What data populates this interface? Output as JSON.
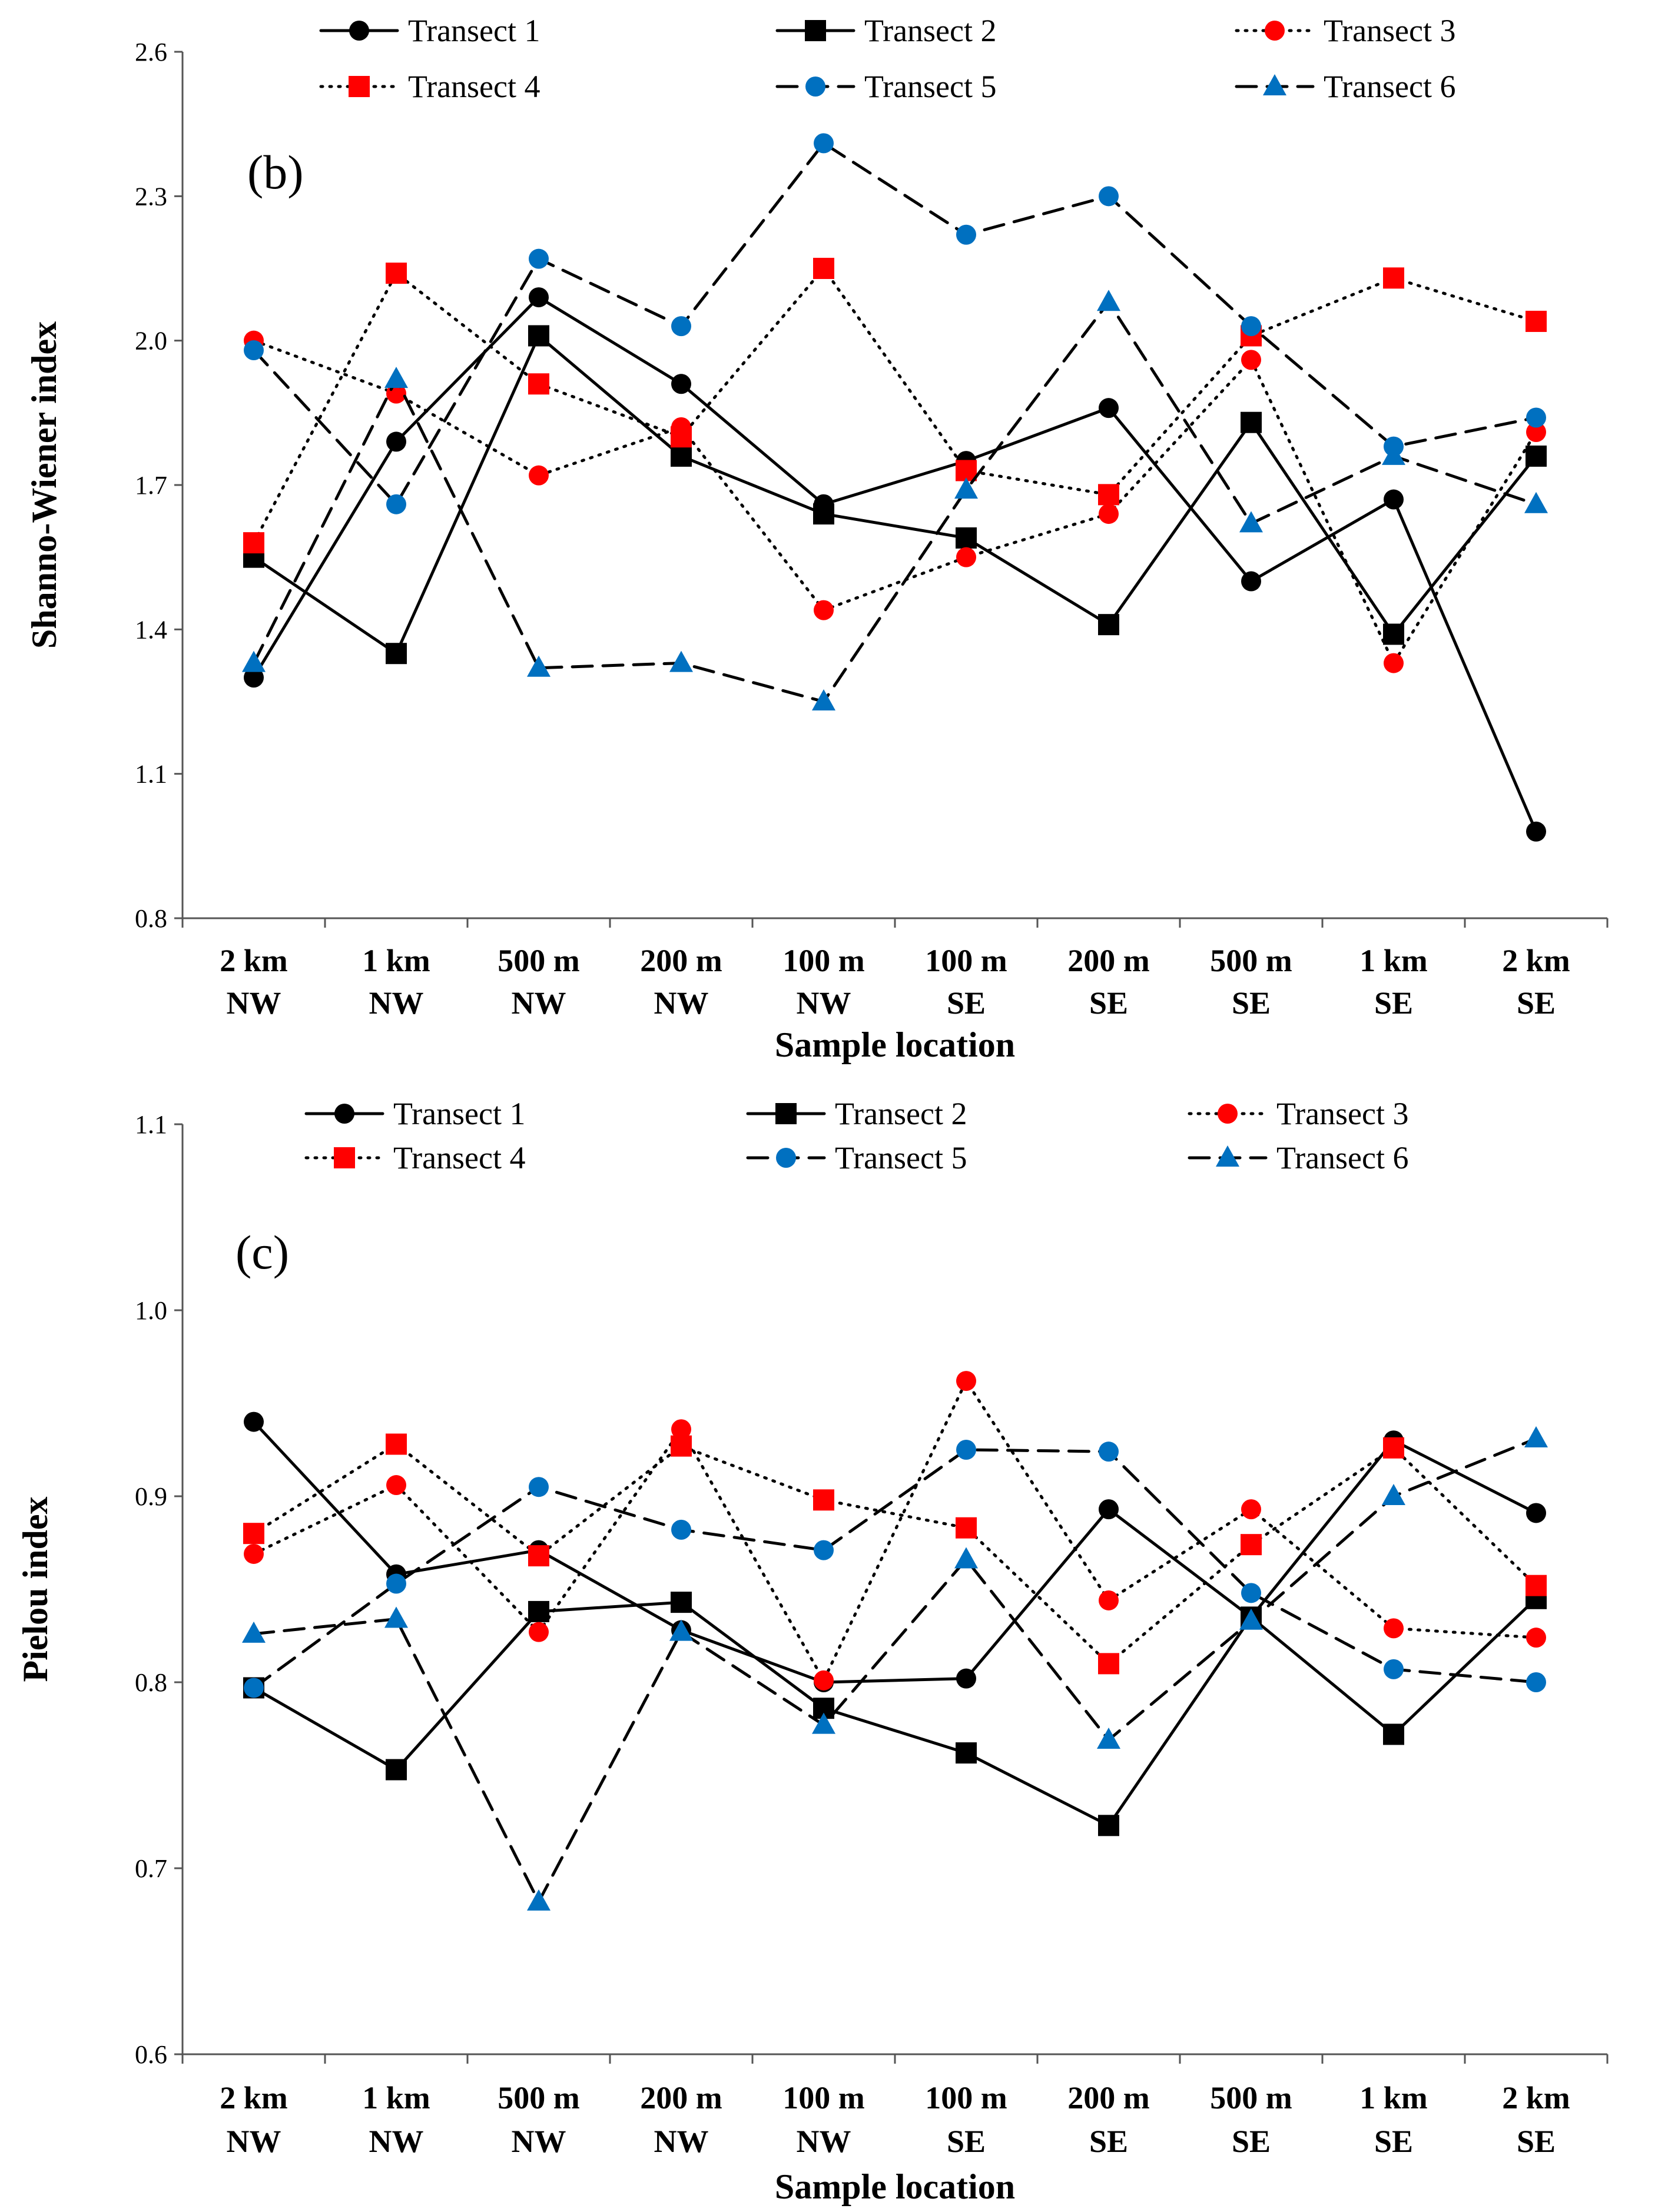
{
  "style": {
    "colors": {
      "black": "#000000",
      "red": "#ff0000",
      "blue": "#0070c0",
      "axis": "#555555"
    }
  },
  "chart_data": [
    {
      "type": "line",
      "panel_label": "(b)",
      "ylabel": "Shanno-Wiener index",
      "xlabel": "Sample location",
      "ylim": [
        0.8,
        2.6
      ],
      "yticks": [
        "0.8",
        "1.1",
        "1.4",
        "1.7",
        "2.0",
        "2.3",
        "2.6"
      ],
      "categories": [
        {
          "line1": "2 km",
          "line2": "NW"
        },
        {
          "line1": "1 km",
          "line2": "NW"
        },
        {
          "line1": "500 m",
          "line2": "NW"
        },
        {
          "line1": "200 m",
          "line2": "NW"
        },
        {
          "line1": "100 m",
          "line2": "NW"
        },
        {
          "line1": "100 m",
          "line2": "SE"
        },
        {
          "line1": "200 m",
          "line2": "SE"
        },
        {
          "line1": "500 m",
          "line2": "SE"
        },
        {
          "line1": "1 km",
          "line2": "SE"
        },
        {
          "line1": "2 km",
          "line2": "SE"
        }
      ],
      "legend": "top",
      "series": [
        {
          "name": "Transect 1",
          "color": "#000000",
          "marker": "circle",
          "dash": "solid",
          "values": [
            1.3,
            1.79,
            2.09,
            1.91,
            1.66,
            1.75,
            1.86,
            1.5,
            1.67,
            0.98
          ]
        },
        {
          "name": "Transect 2",
          "color": "#000000",
          "marker": "square",
          "dash": "solid",
          "values": [
            1.55,
            1.35,
            2.01,
            1.76,
            1.64,
            1.59,
            1.41,
            1.83,
            1.39,
            1.76
          ]
        },
        {
          "name": "Transect 3",
          "color": "#ff0000",
          "marker": "circle",
          "dash": "dotted",
          "values": [
            2.0,
            1.89,
            1.72,
            1.82,
            1.44,
            1.55,
            1.64,
            1.96,
            1.33,
            1.81
          ]
        },
        {
          "name": "Transect 4",
          "color": "#ff0000",
          "marker": "square",
          "dash": "dotted",
          "values": [
            1.58,
            2.14,
            1.91,
            1.8,
            2.15,
            1.73,
            1.68,
            2.01,
            2.13,
            2.04
          ]
        },
        {
          "name": "Transect 5",
          "color": "#0070c0",
          "marker": "circle",
          "dash": "dashed",
          "values": [
            1.98,
            1.66,
            2.17,
            2.03,
            2.41,
            2.22,
            2.3,
            2.03,
            1.78,
            1.84
          ]
        },
        {
          "name": "Transect 6",
          "color": "#0070c0",
          "marker": "triangle",
          "dash": "dashed",
          "values": [
            1.33,
            1.92,
            1.32,
            1.33,
            1.25,
            1.69,
            2.08,
            1.62,
            1.76,
            1.66
          ]
        }
      ]
    },
    {
      "type": "line",
      "panel_label": "(c)",
      "ylabel": "Pielou index",
      "xlabel": "Sample location",
      "ylim": [
        0.6,
        1.1
      ],
      "yticks": [
        "0.6",
        "0.7",
        "0.8",
        "0.9",
        "1.0",
        "1.1"
      ],
      "categories": [
        {
          "line1": "2 km",
          "line2": "NW"
        },
        {
          "line1": "1 km",
          "line2": "NW"
        },
        {
          "line1": "500 m",
          "line2": "NW"
        },
        {
          "line1": "200 m",
          "line2": "NW"
        },
        {
          "line1": "100 m",
          "line2": "NW"
        },
        {
          "line1": "100 m",
          "line2": "SE"
        },
        {
          "line1": "200 m",
          "line2": "SE"
        },
        {
          "line1": "500 m",
          "line2": "SE"
        },
        {
          "line1": "1 km",
          "line2": "SE"
        },
        {
          "line1": "2 km",
          "line2": "SE"
        }
      ],
      "legend": "top",
      "series": [
        {
          "name": "Transect 1",
          "color": "#000000",
          "marker": "circle",
          "dash": "solid",
          "values": [
            0.94,
            0.858,
            0.871,
            0.828,
            0.8,
            0.802,
            0.893,
            0.835,
            0.93,
            0.891
          ]
        },
        {
          "name": "Transect 2",
          "color": "#000000",
          "marker": "square",
          "dash": "solid",
          "values": [
            0.797,
            0.753,
            0.838,
            0.843,
            0.786,
            0.762,
            0.723,
            0.835,
            0.772,
            0.845
          ]
        },
        {
          "name": "Transect 3",
          "color": "#ff0000",
          "marker": "circle",
          "dash": "dotted",
          "values": [
            0.869,
            0.906,
            0.827,
            0.936,
            0.801,
            0.962,
            0.844,
            0.893,
            0.829,
            0.824
          ]
        },
        {
          "name": "Transect 4",
          "color": "#ff0000",
          "marker": "square",
          "dash": "dotted",
          "values": [
            0.88,
            0.928,
            0.868,
            0.927,
            0.898,
            0.883,
            0.81,
            0.874,
            0.926,
            0.852
          ]
        },
        {
          "name": "Transect 5",
          "color": "#0070c0",
          "marker": "circle",
          "dash": "dashed",
          "values": [
            0.797,
            0.853,
            0.905,
            0.882,
            0.871,
            0.925,
            0.924,
            0.848,
            0.807,
            0.8
          ]
        },
        {
          "name": "Transect 6",
          "color": "#0070c0",
          "marker": "triangle",
          "dash": "dashed",
          "values": [
            0.826,
            0.834,
            0.682,
            0.827,
            0.777,
            0.866,
            0.769,
            0.833,
            0.9,
            0.931
          ]
        }
      ]
    }
  ]
}
